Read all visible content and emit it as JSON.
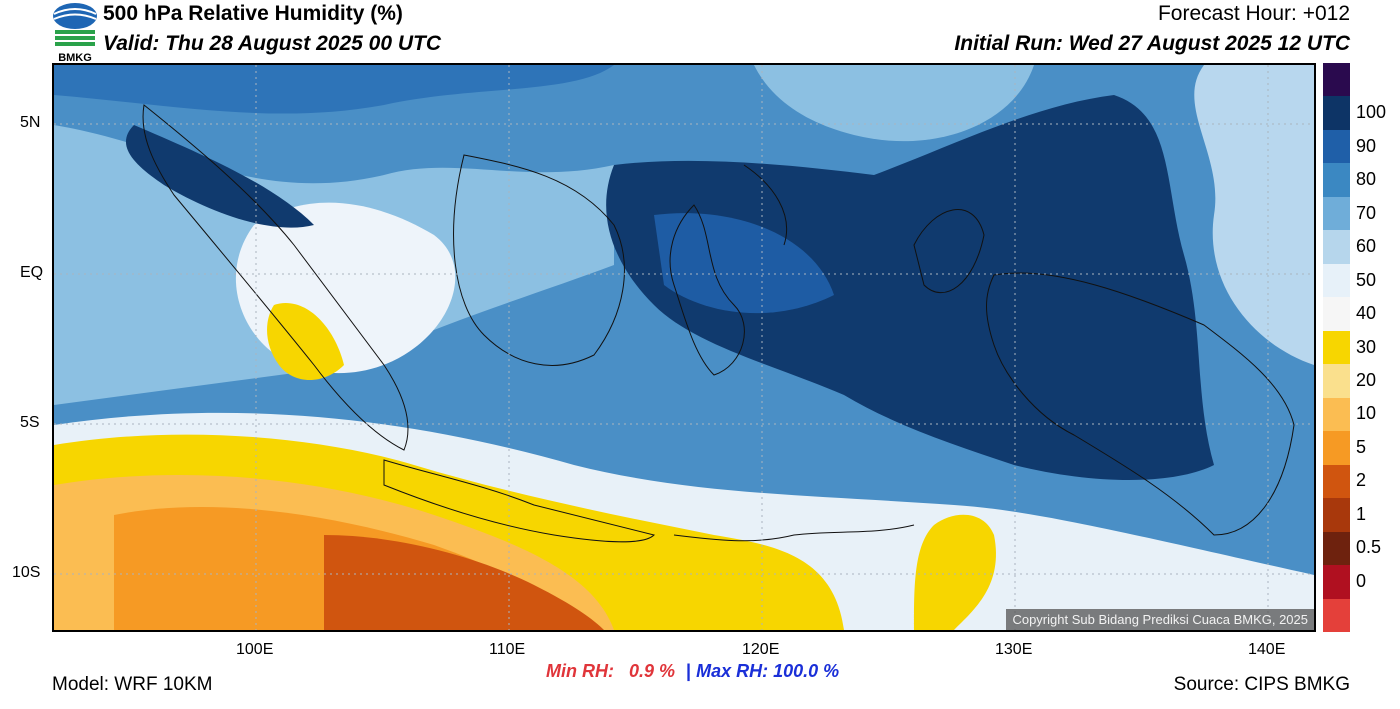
{
  "header": {
    "title": "500 hPa Relative Humidity (%)",
    "valid": "Valid: Thu 28 August 2025 00 UTC",
    "forecast_hour": "Forecast Hour: +012",
    "initial_run": "Initial Run: Wed 27 August 2025 12 UTC",
    "logo_text": "BMKG"
  },
  "map": {
    "lat_ticks": [
      "5N",
      "EQ",
      "5S",
      "10S"
    ],
    "lon_ticks": [
      "100E",
      "110E",
      "120E",
      "130E",
      "140E"
    ],
    "copyright": "Copyright Sub Bidang Prediksi Cuaca BMKG, 2025"
  },
  "colorbar": {
    "labels": [
      "100",
      "90",
      "80",
      "70",
      "60",
      "50",
      "40",
      "30",
      "20",
      "10",
      "5",
      "2",
      "1",
      "0.5",
      "0"
    ],
    "colors": [
      "#2a0a4e",
      "#0d3466",
      "#1f5fa8",
      "#3b88c2",
      "#6fadd9",
      "#b6d6ec",
      "#e7f1f9",
      "#f6f6f6",
      "#f7d600",
      "#fae08d",
      "#fbbd52",
      "#f69a24",
      "#d0550f",
      "#a8380c",
      "#6e220e",
      "#b01020",
      "#e4403a"
    ]
  },
  "footer": {
    "model": "Model: WRF 10KM",
    "min_label": "Min RH:",
    "min_value": "0.9 %",
    "separator": "|",
    "max_label": "Max RH:",
    "max_value": "100.0 %",
    "source": "Source: CIPS BMKG"
  }
}
